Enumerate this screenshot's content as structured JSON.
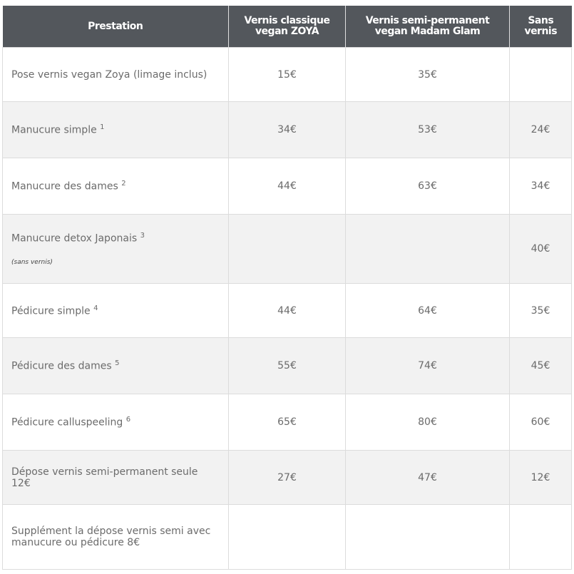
{
  "headers": [
    "Prestation",
    "Vernis classique vegan ZOYA",
    "Vernis semi-permanent vegan Madam Glam",
    "Sans vernis"
  ],
  "rows": [
    {
      "name": "Pose vernis vegan Zoya (limage inclus)",
      "sup": "",
      "note": "",
      "classique": "15€",
      "semi": "35€",
      "sans": ""
    },
    {
      "name": "Manucure simple",
      "sup": "1",
      "note": "",
      "classique": "34€",
      "semi": "53€",
      "sans": "24€"
    },
    {
      "name": "Manucure des dames",
      "sup": "2",
      "note": "",
      "classique": "44€",
      "semi": "63€",
      "sans": "34€"
    },
    {
      "name": "Manucure detox Japonais",
      "sup": "3",
      "note": "(sans vernis)",
      "classique": "",
      "semi": "",
      "sans": "40€"
    },
    {
      "name": "Pédicure simple",
      "sup": "4",
      "note": "",
      "classique": "44€",
      "semi": "64€",
      "sans": "35€"
    },
    {
      "name": "Pédicure des dames",
      "sup": "5",
      "note": "",
      "classique": "55€",
      "semi": "74€",
      "sans": "45€"
    },
    {
      "name": "Pédicure calluspeeling",
      "sup": "6",
      "note": "",
      "classique": "65€",
      "semi": "80€",
      "sans": "60€"
    },
    {
      "name": "Dépose vernis semi-permanent seule 12€",
      "sup": "",
      "note": "",
      "classique": "27€",
      "semi": "47€",
      "sans": "12€"
    },
    {
      "name": "Supplément la dépose vernis semi avec manucure ou pédicure 8€",
      "sup": "",
      "note": "",
      "classique": "",
      "semi": "",
      "sans": ""
    }
  ],
  "colors": {
    "header_bg": "#53575c",
    "alt_row": "#f2f2f2",
    "text": "#6b6b6b"
  }
}
